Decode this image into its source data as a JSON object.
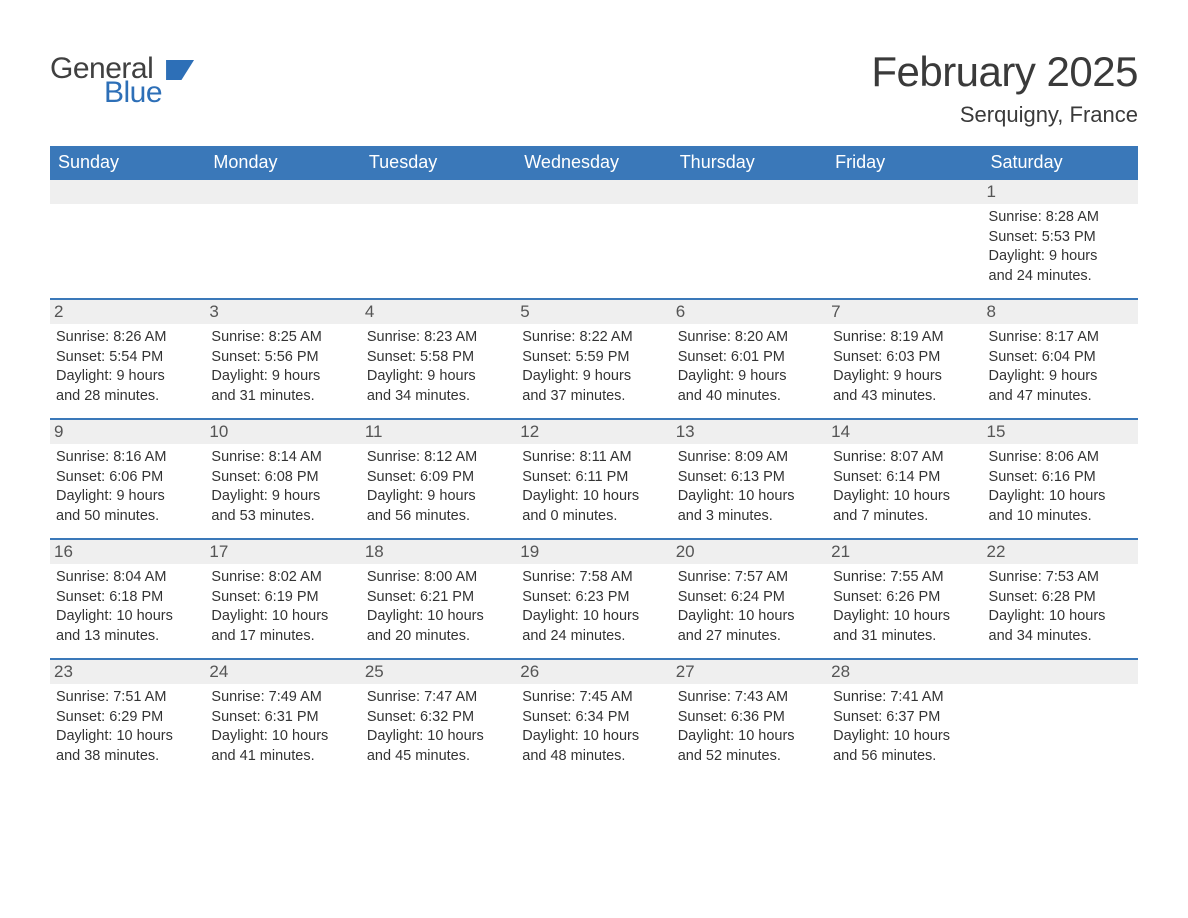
{
  "brand": {
    "line1": "General",
    "line2": "Blue"
  },
  "title": "February 2025",
  "location": "Serquigny, France",
  "colors": {
    "header_bg": "#3a78b9",
    "week_border": "#3a78b9",
    "daynum_bg": "#efefef",
    "brand_blue": "#2d6fb7",
    "text": "#333333",
    "background": "#ffffff"
  },
  "day_names": [
    "Sunday",
    "Monday",
    "Tuesday",
    "Wednesday",
    "Thursday",
    "Friday",
    "Saturday"
  ],
  "weeks": [
    [
      {
        "n": null
      },
      {
        "n": null
      },
      {
        "n": null
      },
      {
        "n": null
      },
      {
        "n": null
      },
      {
        "n": null
      },
      {
        "n": 1,
        "sunrise": "8:28 AM",
        "sunset": "5:53 PM",
        "daylight": "9 hours and 24 minutes."
      }
    ],
    [
      {
        "n": 2,
        "sunrise": "8:26 AM",
        "sunset": "5:54 PM",
        "daylight": "9 hours and 28 minutes."
      },
      {
        "n": 3,
        "sunrise": "8:25 AM",
        "sunset": "5:56 PM",
        "daylight": "9 hours and 31 minutes."
      },
      {
        "n": 4,
        "sunrise": "8:23 AM",
        "sunset": "5:58 PM",
        "daylight": "9 hours and 34 minutes."
      },
      {
        "n": 5,
        "sunrise": "8:22 AM",
        "sunset": "5:59 PM",
        "daylight": "9 hours and 37 minutes."
      },
      {
        "n": 6,
        "sunrise": "8:20 AM",
        "sunset": "6:01 PM",
        "daylight": "9 hours and 40 minutes."
      },
      {
        "n": 7,
        "sunrise": "8:19 AM",
        "sunset": "6:03 PM",
        "daylight": "9 hours and 43 minutes."
      },
      {
        "n": 8,
        "sunrise": "8:17 AM",
        "sunset": "6:04 PM",
        "daylight": "9 hours and 47 minutes."
      }
    ],
    [
      {
        "n": 9,
        "sunrise": "8:16 AM",
        "sunset": "6:06 PM",
        "daylight": "9 hours and 50 minutes."
      },
      {
        "n": 10,
        "sunrise": "8:14 AM",
        "sunset": "6:08 PM",
        "daylight": "9 hours and 53 minutes."
      },
      {
        "n": 11,
        "sunrise": "8:12 AM",
        "sunset": "6:09 PM",
        "daylight": "9 hours and 56 minutes."
      },
      {
        "n": 12,
        "sunrise": "8:11 AM",
        "sunset": "6:11 PM",
        "daylight": "10 hours and 0 minutes."
      },
      {
        "n": 13,
        "sunrise": "8:09 AM",
        "sunset": "6:13 PM",
        "daylight": "10 hours and 3 minutes."
      },
      {
        "n": 14,
        "sunrise": "8:07 AM",
        "sunset": "6:14 PM",
        "daylight": "10 hours and 7 minutes."
      },
      {
        "n": 15,
        "sunrise": "8:06 AM",
        "sunset": "6:16 PM",
        "daylight": "10 hours and 10 minutes."
      }
    ],
    [
      {
        "n": 16,
        "sunrise": "8:04 AM",
        "sunset": "6:18 PM",
        "daylight": "10 hours and 13 minutes."
      },
      {
        "n": 17,
        "sunrise": "8:02 AM",
        "sunset": "6:19 PM",
        "daylight": "10 hours and 17 minutes."
      },
      {
        "n": 18,
        "sunrise": "8:00 AM",
        "sunset": "6:21 PM",
        "daylight": "10 hours and 20 minutes."
      },
      {
        "n": 19,
        "sunrise": "7:58 AM",
        "sunset": "6:23 PM",
        "daylight": "10 hours and 24 minutes."
      },
      {
        "n": 20,
        "sunrise": "7:57 AM",
        "sunset": "6:24 PM",
        "daylight": "10 hours and 27 minutes."
      },
      {
        "n": 21,
        "sunrise": "7:55 AM",
        "sunset": "6:26 PM",
        "daylight": "10 hours and 31 minutes."
      },
      {
        "n": 22,
        "sunrise": "7:53 AM",
        "sunset": "6:28 PM",
        "daylight": "10 hours and 34 minutes."
      }
    ],
    [
      {
        "n": 23,
        "sunrise": "7:51 AM",
        "sunset": "6:29 PM",
        "daylight": "10 hours and 38 minutes."
      },
      {
        "n": 24,
        "sunrise": "7:49 AM",
        "sunset": "6:31 PM",
        "daylight": "10 hours and 41 minutes."
      },
      {
        "n": 25,
        "sunrise": "7:47 AM",
        "sunset": "6:32 PM",
        "daylight": "10 hours and 45 minutes."
      },
      {
        "n": 26,
        "sunrise": "7:45 AM",
        "sunset": "6:34 PM",
        "daylight": "10 hours and 48 minutes."
      },
      {
        "n": 27,
        "sunrise": "7:43 AM",
        "sunset": "6:36 PM",
        "daylight": "10 hours and 52 minutes."
      },
      {
        "n": 28,
        "sunrise": "7:41 AM",
        "sunset": "6:37 PM",
        "daylight": "10 hours and 56 minutes."
      },
      {
        "n": null
      }
    ]
  ],
  "labels": {
    "sunrise": "Sunrise:",
    "sunset": "Sunset:",
    "daylight": "Daylight:"
  }
}
